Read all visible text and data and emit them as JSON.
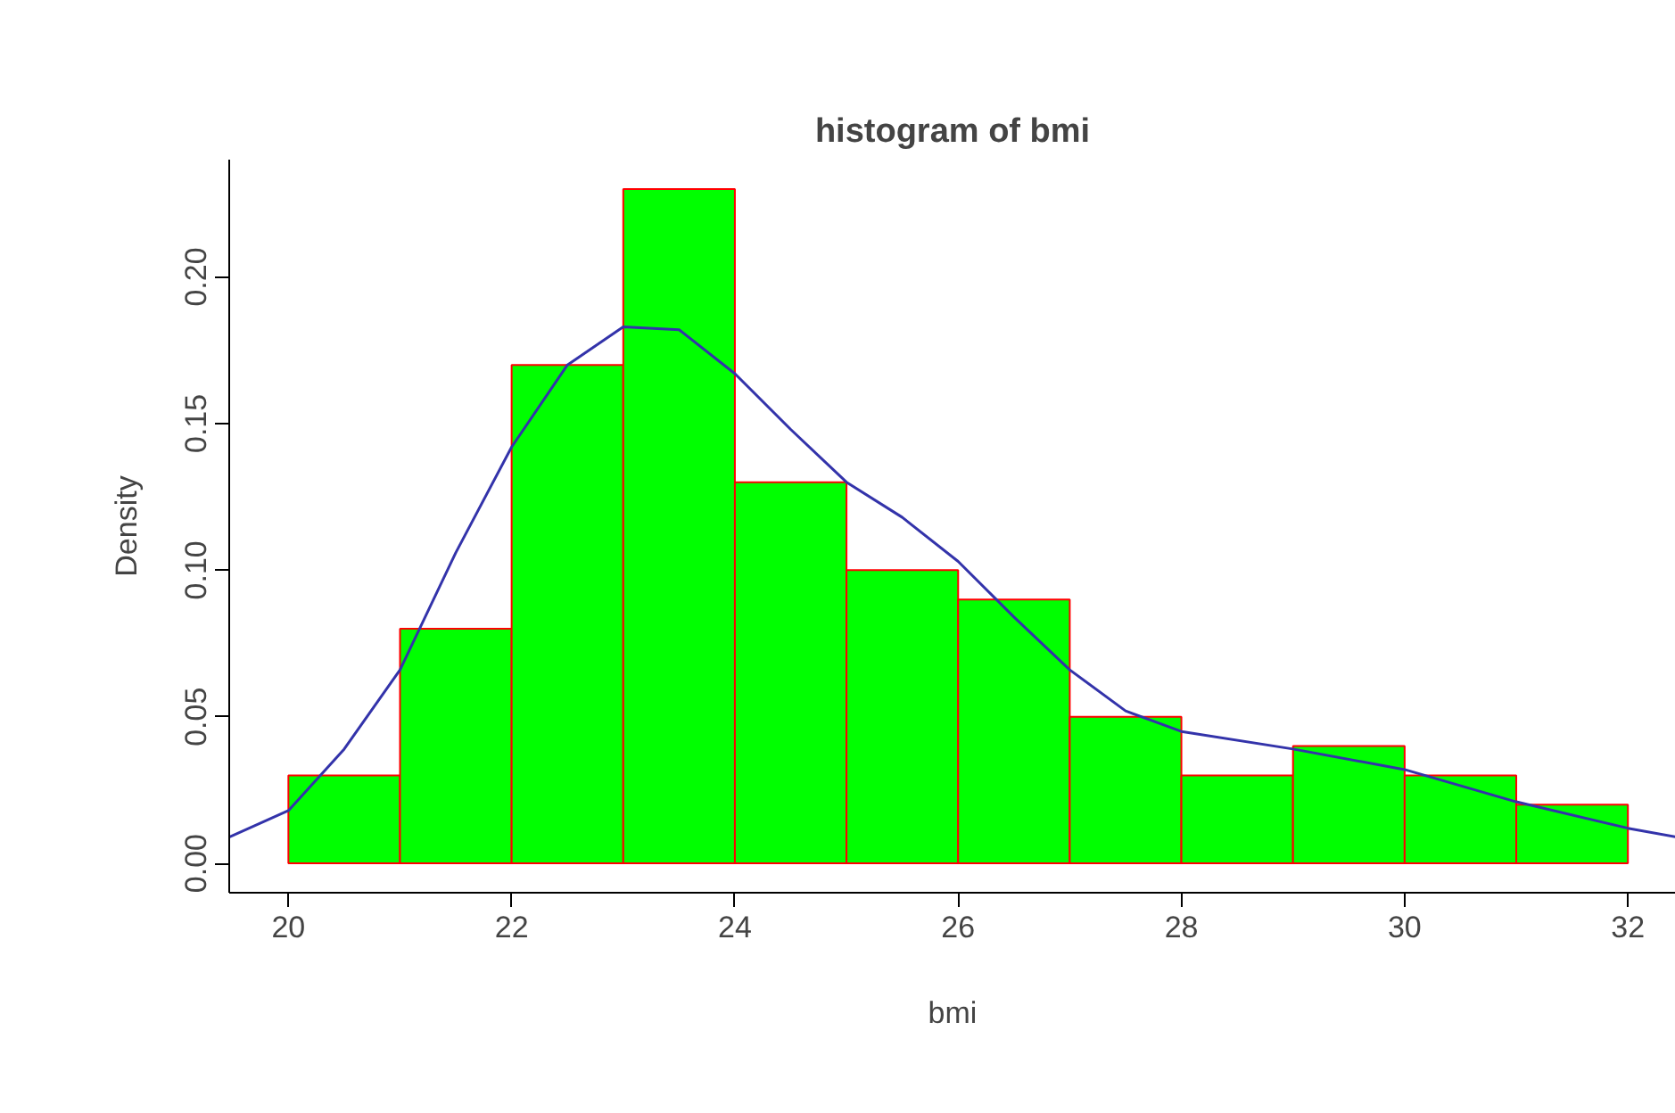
{
  "chart_data": {
    "type": "histogram",
    "title": "histogram of bmi",
    "xlabel": "bmi",
    "ylabel": "Density",
    "series": [
      {
        "bins": [
          20,
          21,
          22,
          23,
          24,
          25,
          26,
          27,
          28,
          29,
          30,
          31,
          32
        ],
        "values": [
          0.03,
          0.08,
          0.17,
          0.23,
          0.13,
          0.1,
          0.09,
          0.05,
          0.03,
          0.04,
          0.03,
          0.02
        ],
        "color": "#00ff00"
      },
      {
        "type": "line",
        "x": [
          19.47,
          20,
          20.5,
          21,
          21.5,
          22,
          22.5,
          23,
          23.5,
          24,
          24.5,
          25,
          25.5,
          26,
          26.5,
          27,
          27.5,
          28,
          29,
          30,
          31,
          32,
          32.43
        ],
        "values": [
          0.009,
          0.018,
          0.039,
          0.066,
          0.106,
          0.142,
          0.17,
          0.183,
          0.182,
          0.167,
          0.148,
          0.13,
          0.118,
          0.103,
          0.084,
          0.066,
          0.052,
          0.045,
          0.039,
          0.032,
          0.021,
          0.012,
          0.009
        ],
        "color": "#3333aa"
      }
    ],
    "xlim": [
      19.47,
      32.43
    ],
    "ylim": [
      -0.01,
      0.24
    ],
    "xticks": [
      20,
      22,
      24,
      26,
      28,
      30,
      32
    ],
    "yticks": [
      {
        "value": 0,
        "label": "0.00"
      },
      {
        "value": 0.05,
        "label": "0.05"
      },
      {
        "value": 0.1,
        "label": "0.10"
      },
      {
        "value": 0.15,
        "label": "0.15"
      },
      {
        "value": 0.2,
        "label": "0.20"
      }
    ],
    "grid": false
  }
}
